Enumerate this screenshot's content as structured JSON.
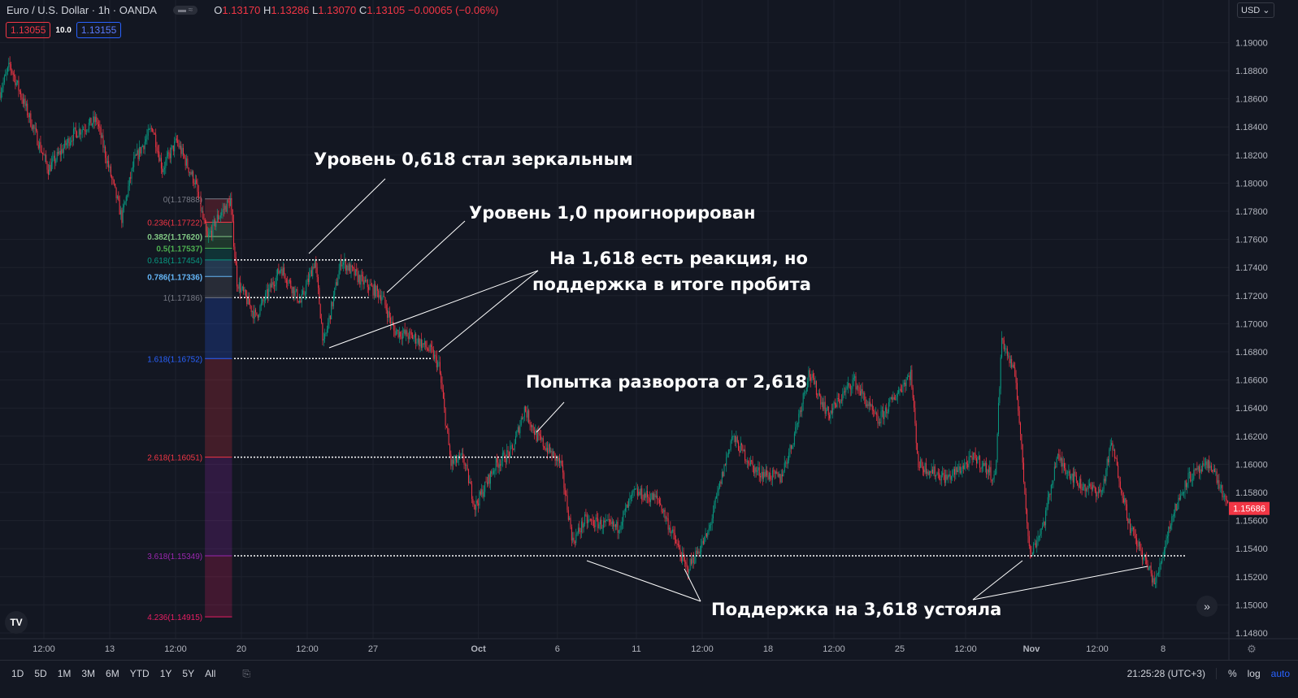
{
  "header": {
    "symbol": "Euro / U.S. Dollar · 1h · OANDA",
    "pill": "▬ ≈",
    "o_label": "O",
    "o": "1.13170",
    "h_label": "H",
    "h": "1.13286",
    "l_label": "L",
    "l": "1.13070",
    "c_label": "C",
    "c": "1.13105",
    "change": "−0.00065 (−0.06%)",
    "bid": "1.13055",
    "spread": "10.0",
    "ask": "1.13155",
    "currency": "USD ⌄"
  },
  "colors": {
    "background": "#131722",
    "up": "#089981",
    "down": "#f23645",
    "grid": "#1e222d",
    "annotation": "#ffffff"
  },
  "annotations": [
    "Уровень 0,618 стал зеркальным",
    "Уровень 1,0 проигнорирован",
    "На 1,618 есть реакция, но",
    "поддержка в итоге пробита",
    "Попытка разворота от 2,618",
    "Поддержка на 3,618 устояла"
  ],
  "toolbar": {
    "ranges": [
      "1D",
      "5D",
      "1M",
      "3M",
      "6M",
      "YTD",
      "1Y",
      "5Y",
      "All"
    ],
    "goto_icon": "calendar-goto-icon",
    "time": "21:25:28 (UTC+3)",
    "percent": "%",
    "log": "log",
    "auto": "auto"
  },
  "chart_data": {
    "type": "candlestick",
    "interval": "1h",
    "title": "Euro / U.S. Dollar · 1h · OANDA",
    "ylim": [
      1.148,
      1.191
    ],
    "y_ticks": [
      "1.19000",
      "1.18800",
      "1.18600",
      "1.18400",
      "1.18200",
      "1.18000",
      "1.17800",
      "1.17600",
      "1.17400",
      "1.17200",
      "1.17000",
      "1.16800",
      "1.16600",
      "1.16400",
      "1.16200",
      "1.16000",
      "1.15800",
      "1.15600",
      "1.15400",
      "1.15200",
      "1.15000",
      "1.14800"
    ],
    "x_ticks": [
      [
        "09-08 12:00",
        "12:00"
      ],
      [
        "09-13 00:00",
        "13"
      ],
      [
        "09-15 12:00",
        "12:00"
      ],
      [
        "09-20 00:00",
        "20"
      ],
      [
        "09-22 12:00",
        "12:00"
      ],
      [
        "09-27 00:00",
        "27"
      ],
      [
        "10-01 00:00",
        "Oct"
      ],
      [
        "10-06 00:00",
        "6"
      ],
      [
        "10-11 00:00",
        "11"
      ],
      [
        "10-13 12:00",
        "12:00"
      ],
      [
        "10-18 00:00",
        "18"
      ],
      [
        "10-20 12:00",
        "12:00"
      ],
      [
        "10-25 00:00",
        "25"
      ],
      [
        "10-27 12:00",
        "12:00"
      ],
      [
        "11-01 00:00",
        "Nov"
      ],
      [
        "11-03 12:00",
        "12:00"
      ],
      [
        "11-08 00:00",
        "8"
      ]
    ],
    "last_price": "1.15686",
    "price_path": [
      [
        "09-06 20:00",
        1.1865
      ],
      [
        "09-07 05:00",
        1.1884
      ],
      [
        "09-08 02:00",
        1.184
      ],
      [
        "09-08 16:00",
        1.181
      ],
      [
        "09-09 15:00",
        1.1835
      ],
      [
        "09-10 12:00",
        1.1845
      ],
      [
        "09-13 11:00",
        1.1775
      ],
      [
        "09-13 22:00",
        1.1815
      ],
      [
        "09-14 15:00",
        1.184
      ],
      [
        "09-15 00:00",
        1.181
      ],
      [
        "09-15 13:00",
        1.183
      ],
      [
        "09-16 06:00",
        1.18
      ],
      [
        "09-16 17:00",
        1.176
      ],
      [
        "09-17 02:00",
        1.1775
      ],
      [
        "09-17 14:00",
        1.1788
      ],
      [
        "09-17 20:00",
        1.173
      ],
      [
        "09-20 13:00",
        1.1705
      ],
      [
        "09-21 12:00",
        1.174
      ],
      [
        "09-22 06:00",
        1.1715
      ],
      [
        "09-22 19:00",
        1.1745
      ],
      [
        "09-23 03:00",
        1.1685
      ],
      [
        "09-23 19:00",
        1.1745
      ],
      [
        "09-24 14:00",
        1.173
      ],
      [
        "09-27 08:00",
        1.172
      ],
      [
        "09-27 19:00",
        1.1695
      ],
      [
        "09-28 14:00",
        1.169
      ],
      [
        "09-29 05:00",
        1.168
      ],
      [
        "09-29 12:00",
        1.167
      ],
      [
        "09-29 23:00",
        1.16
      ],
      [
        "09-30 10:00",
        1.1605
      ],
      [
        "09-30 21:00",
        1.157
      ],
      [
        "10-01 16:00",
        1.16
      ],
      [
        "10-04 07:00",
        1.161
      ],
      [
        "10-04 18:00",
        1.164
      ],
      [
        "10-05 05:00",
        1.162
      ],
      [
        "10-06 03:00",
        1.16
      ],
      [
        "10-06 14:00",
        1.1545
      ],
      [
        "10-07 01:00",
        1.156
      ],
      [
        "10-08 07:00",
        1.1555
      ],
      [
        "10-08 22:00",
        1.158
      ],
      [
        "10-11 20:00",
        1.1575
      ],
      [
        "10-12 22:00",
        1.1525
      ],
      [
        "10-13 17:00",
        1.155
      ],
      [
        "10-14 15:00",
        1.162
      ],
      [
        "10-15 13:00",
        1.1595
      ],
      [
        "10-18 11:00",
        1.159
      ],
      [
        "10-18 22:00",
        1.1615
      ],
      [
        "10-19 13:00",
        1.1665
      ],
      [
        "10-20 07:00",
        1.1635
      ],
      [
        "10-21 06:00",
        1.166
      ],
      [
        "10-22 04:00",
        1.163
      ],
      [
        "10-25 10:00",
        1.1665
      ],
      [
        "10-25 17:00",
        1.16
      ],
      [
        "10-26 19:00",
        1.159
      ],
      [
        "10-27 21:00",
        1.1605
      ],
      [
        "10-28 15:00",
        1.159
      ],
      [
        "10-28 21:00",
        1.169
      ],
      [
        "10-29 10:00",
        1.166
      ],
      [
        "10-29 19:00",
        1.157
      ],
      [
        "10-29 23:00",
        1.1535
      ],
      [
        "11-01 12:00",
        1.156
      ],
      [
        "11-01 23:00",
        1.1605
      ],
      [
        "11-02 21:00",
        1.1585
      ],
      [
        "11-03 16:00",
        1.158
      ],
      [
        "11-04 01:00",
        1.1615
      ],
      [
        "11-04 18:00",
        1.1555
      ],
      [
        "11-05 17:00",
        1.1515
      ],
      [
        "11-08 07:00",
        1.156
      ],
      [
        "11-08 22:00",
        1.159
      ],
      [
        "11-09 20:00",
        1.16
      ],
      [
        "11-10 11:00",
        1.1569
      ]
    ],
    "fibonacci": {
      "start": "09-16 17:00",
      "end": "09-17 14:00",
      "levels": [
        {
          "ratio": "0",
          "price": 1.17888,
          "label": "0(1.17888)",
          "color": "#787b86"
        },
        {
          "ratio": "0.236",
          "price": 1.17722,
          "label": "0.236(1.17722)",
          "color": "#f23645"
        },
        {
          "ratio": "0.382",
          "price": 1.1762,
          "label": "0.382(1.17620)",
          "color": "#81c784"
        },
        {
          "ratio": "0.5",
          "price": 1.17537,
          "label": "0.5(1.17537)",
          "color": "#4caf50"
        },
        {
          "ratio": "0.618",
          "price": 1.17454,
          "label": "0.618(1.17454)",
          "color": "#089981"
        },
        {
          "ratio": "0.786",
          "price": 1.17336,
          "label": "0.786(1.17336)",
          "color": "#64b5f6"
        },
        {
          "ratio": "1",
          "price": 1.17186,
          "label": "1(1.17186)",
          "color": "#787b86"
        },
        {
          "ratio": "1.618",
          "price": 1.16752,
          "label": "1.618(1.16752)",
          "color": "#2962ff"
        },
        {
          "ratio": "2.618",
          "price": 1.16051,
          "label": "2.618(1.16051)",
          "color": "#f23645"
        },
        {
          "ratio": "3.618",
          "price": 1.15349,
          "label": "3.618(1.15349)",
          "color": "#9c27b0"
        },
        {
          "ratio": "4.236",
          "price": 1.14915,
          "label": "4.236(1.14915)",
          "color": "#e91e63"
        }
      ]
    },
    "dotted_levels": [
      [
        1.17454,
        "09-24 14:00"
      ],
      [
        1.17186,
        "09-24 20:00"
      ],
      [
        1.16752,
        "09-29 06:00"
      ],
      [
        1.16051,
        "10-06 00:00"
      ],
      [
        1.15349,
        "11-08 20:00"
      ]
    ]
  }
}
